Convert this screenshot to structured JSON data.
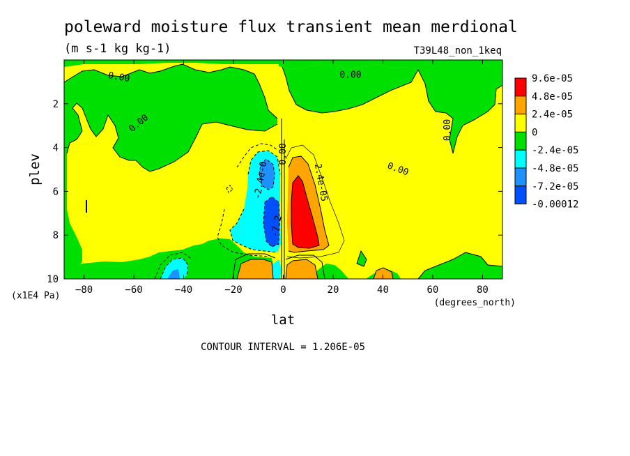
{
  "chart_data": {
    "type": "heatmap",
    "title": "poleward moisture flux transient mean merdional",
    "units": "(m s-1 kg kg-1)",
    "run_label": "T39L48_non_1keq",
    "xlabel": "lat",
    "x_unit_label": "(degrees_north)",
    "ylabel": "plev",
    "y_unit_label": "(x1E4 Pa)",
    "xlim": [
      -88,
      88
    ],
    "ylim": [
      0,
      10
    ],
    "y_inverted": true,
    "xticks": [
      -80,
      -60,
      -40,
      -20,
      0,
      20,
      40,
      60,
      80
    ],
    "yticks": [
      2,
      4,
      6,
      8,
      10
    ],
    "footer": "CONTOUR INTERVAL = 1.206E-05",
    "legend": {
      "placement": "right",
      "levels": [
        {
          "label": "9.6e-05",
          "color": "#ff0000"
        },
        {
          "label": "4.8e-05",
          "color": "#ffa500"
        },
        {
          "label": "2.4e-05",
          "color": "#ffff00"
        },
        {
          "label": "0",
          "color": "#00e000"
        },
        {
          "label": "-2.4e-05",
          "color": "#00ffff"
        },
        {
          "label": "-4.8e-05",
          "color": "#1e90ff"
        },
        {
          "label": "-7.2e-05",
          "color": "#0050ff"
        },
        {
          "label": "-0.00012",
          "color": null
        }
      ]
    },
    "contour_labels": [
      {
        "text": "0.00",
        "lat": -66,
        "plev": 0.8,
        "angle": 10
      },
      {
        "text": "0.00",
        "lat": -58,
        "plev": 2.9,
        "angle": -40
      },
      {
        "text": "0.00",
        "lat": 27,
        "plev": 0.7,
        "angle": 0
      },
      {
        "text": "0.00",
        "lat": 66,
        "plev": 3.2,
        "angle": -90
      },
      {
        "text": "0.00",
        "lat": 46,
        "plev": 5.0,
        "angle": 20
      },
      {
        "text": "0.00",
        "lat": 0,
        "plev": 4.3,
        "angle": -90
      },
      {
        "text": "-2.4e-0",
        "lat": -9,
        "plev": 5.5,
        "angle": -80
      },
      {
        "text": "-7.2",
        "lat": -2.5,
        "plev": 7.6,
        "angle": -80
      },
      {
        "text": "2.4e-05",
        "lat": 15,
        "plev": 5.6,
        "angle": 80
      }
    ]
  }
}
